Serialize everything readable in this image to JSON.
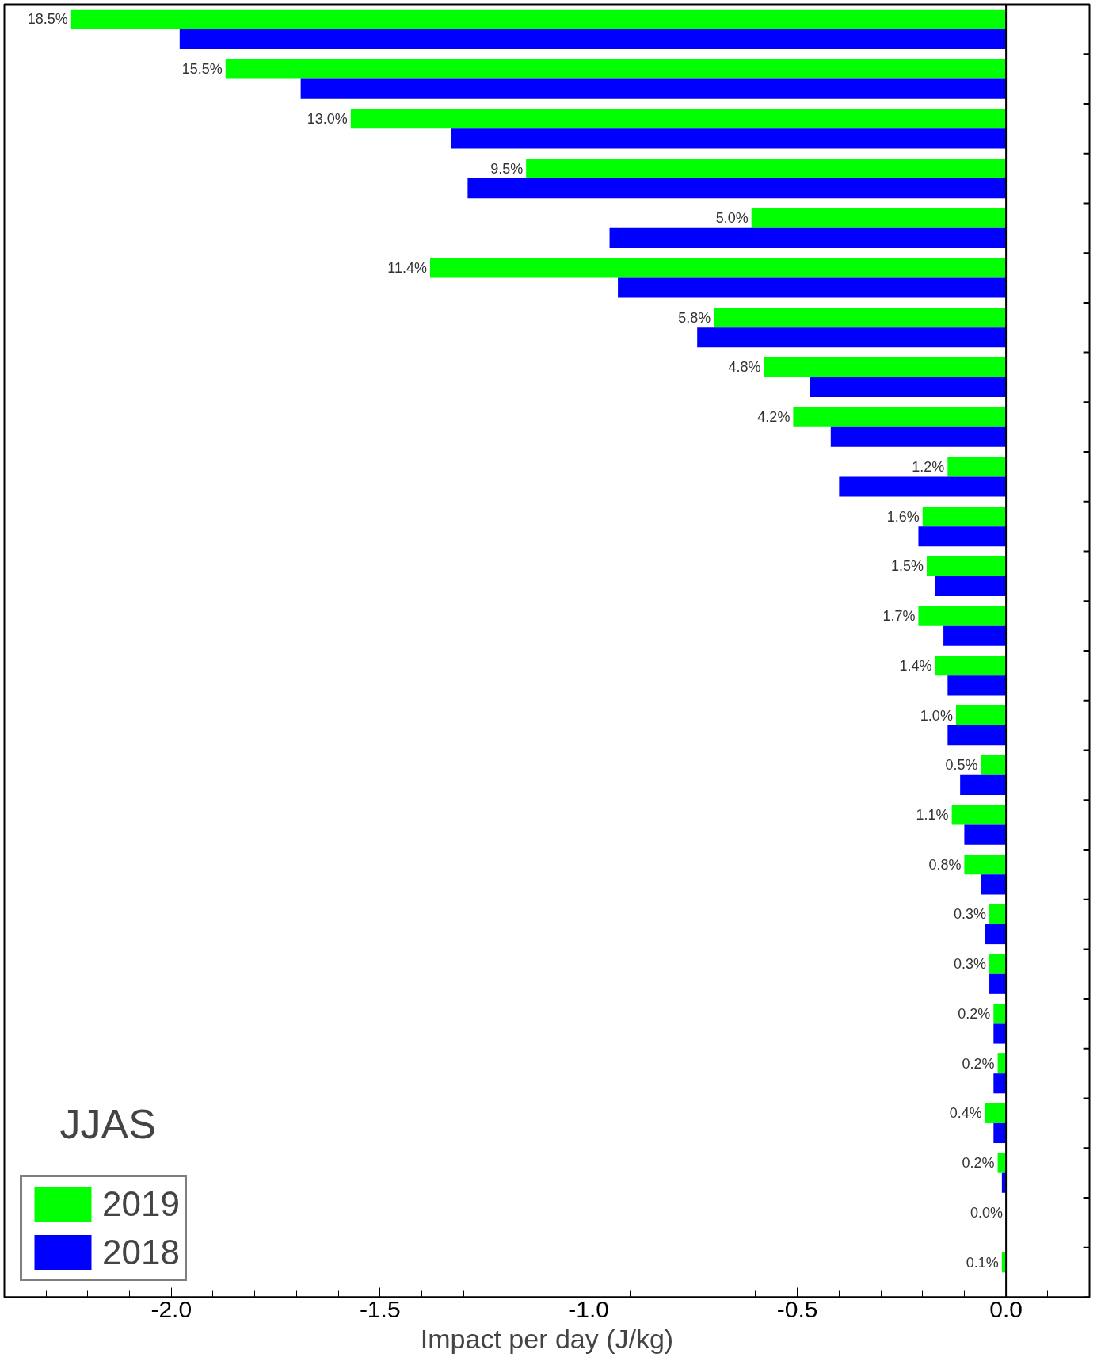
{
  "chart_data": {
    "type": "bar",
    "orientation": "horizontal",
    "xlabel": "Impact per day (J/kg)",
    "annotations": [
      "JJAS",
      {
        "text": "18.5%",
        "x": -2.24
      },
      {
        "text": "15.5%",
        "x": -1.87
      },
      {
        "text": "13.0%",
        "x": -1.57
      },
      {
        "text": "9.5%",
        "x": -1.15
      },
      {
        "text": "5.0%",
        "x": -0.61
      },
      {
        "text": "11.4%",
        "x": -1.38
      },
      {
        "text": "5.8%",
        "x": -0.7
      },
      {
        "text": "4.8%",
        "x": -0.58
      },
      {
        "text": "4.2%",
        "x": -0.51
      },
      {
        "text": "1.2%",
        "x": -0.14
      },
      {
        "text": "1.6%",
        "x": -0.2
      },
      {
        "text": "1.5%",
        "x": -0.19
      },
      {
        "text": "1.7%",
        "x": -0.21
      },
      {
        "text": "1.4%",
        "x": -0.17
      },
      {
        "text": "1.0%",
        "x": -0.12
      },
      {
        "text": "0.5%",
        "x": -0.06
      },
      {
        "text": "1.1%",
        "x": -0.13
      },
      {
        "text": "0.8%",
        "x": -0.1
      },
      {
        "text": "0.3%",
        "x": -0.04
      },
      {
        "text": "0.3%",
        "x": -0.04
      },
      {
        "text": "0.2%",
        "x": -0.03
      },
      {
        "text": "0.2%",
        "x": -0.02
      },
      {
        "text": "0.4%",
        "x": -0.05
      },
      {
        "text": "0.2%",
        "x": -0.02
      },
      {
        "text": "0.0%",
        "x": 0
      },
      {
        "text": "0.1%",
        "x": -0.01
      }
    ],
    "categories": [
      null,
      null,
      null,
      null,
      null,
      null,
      null,
      null,
      null,
      null,
      null,
      null,
      null,
      null,
      null,
      null,
      null,
      null,
      null,
      null,
      null,
      null,
      null,
      null,
      null,
      null
    ],
    "series": [
      {
        "name": "2019",
        "color": "#00ff00",
        "values": [
          -2.24,
          -1.87,
          -1.57,
          -1.15,
          -0.61,
          -1.38,
          -0.7,
          -0.58,
          -0.51,
          -0.14,
          -0.2,
          -0.19,
          -0.21,
          -0.17,
          -0.12,
          -0.06,
          -0.13,
          -0.1,
          -0.04,
          -0.04,
          -0.03,
          -0.02,
          -0.05,
          -0.02,
          0,
          -0.01
        ]
      },
      {
        "name": "2018",
        "color": "#0000ff",
        "values": [
          -1.98,
          -1.69,
          -1.33,
          -1.29,
          -0.95,
          -0.93,
          -0.74,
          -0.47,
          -0.42,
          -0.4,
          -0.21,
          -0.17,
          -0.15,
          -0.14,
          -0.14,
          -0.11,
          -0.1,
          -0.06,
          -0.05,
          -0.04,
          -0.03,
          -0.03,
          -0.03,
          -0.01,
          0,
          0
        ]
      }
    ],
    "ref_lines": [
      {
        "axis": "x",
        "value": 0,
        "color": "#000000"
      }
    ],
    "xlim": [
      -2.4,
      0.2
    ],
    "xticks": [
      {
        "value": -2.0,
        "label": "-2.0"
      },
      {
        "value": -1.5,
        "label": "-1.5"
      },
      {
        "value": -1.0,
        "label": "-1.0"
      },
      {
        "value": -0.5,
        "label": "-0.5"
      },
      {
        "value": 0,
        "label": "0.0"
      },
      {
        "value": -2.3,
        "label": null
      },
      {
        "value": -2.2,
        "label": null
      },
      {
        "value": -2.1,
        "label": null
      },
      {
        "value": -1.9,
        "label": null
      },
      {
        "value": -1.8,
        "label": null
      },
      {
        "value": -1.7,
        "label": null
      },
      {
        "value": -1.6,
        "label": null
      },
      {
        "value": -1.4,
        "label": null
      },
      {
        "value": -1.3,
        "label": null
      },
      {
        "value": -1.2,
        "label": null
      },
      {
        "value": -1.1,
        "label": null
      },
      {
        "value": -0.9,
        "label": null
      },
      {
        "value": -0.8,
        "label": null
      },
      {
        "value": -0.7,
        "label": null
      },
      {
        "value": -0.6,
        "label": null
      },
      {
        "value": -0.4,
        "label": null
      },
      {
        "value": -0.3,
        "label": null
      },
      {
        "value": -0.2,
        "label": null
      },
      {
        "value": -0.1,
        "label": null
      },
      {
        "value": 0.1,
        "label": null
      }
    ],
    "tick_labels": "x",
    "legend": "bottom left"
  }
}
